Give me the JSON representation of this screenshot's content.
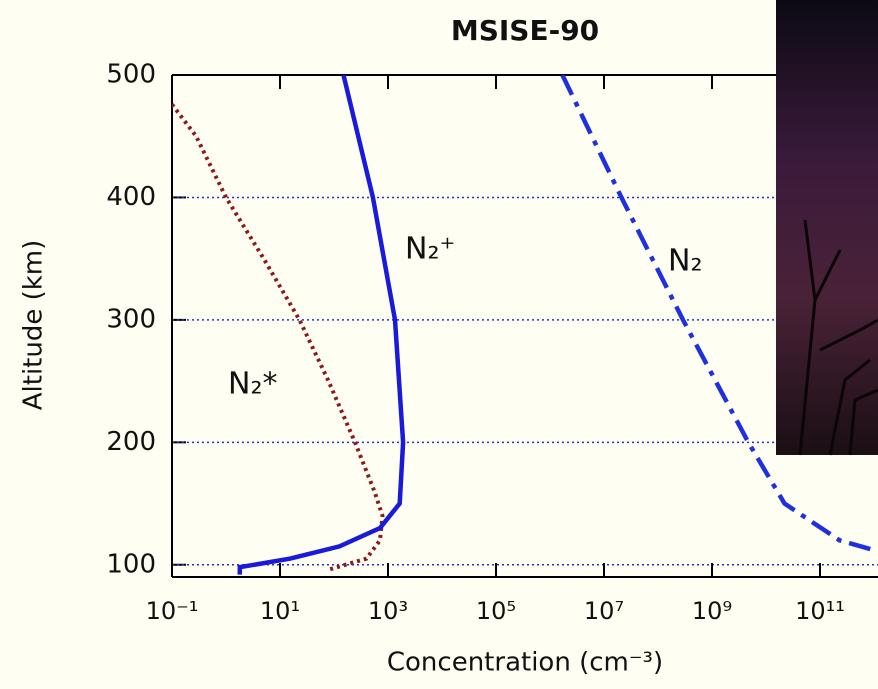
{
  "chart_data": {
    "type": "line",
    "title": "MSISE-90",
    "xlabel": "Concentration (cm⁻³)",
    "ylabel": "Altitude (km)",
    "xscale": "log",
    "grid": true,
    "xlim": [
      0.1,
      1000000000000
    ],
    "ylim": [
      90,
      500
    ],
    "xticks": [
      {
        "value": 0.1,
        "label": "10⁻¹"
      },
      {
        "value": 10,
        "label": "10¹"
      },
      {
        "value": 1000,
        "label": "10³"
      },
      {
        "value": 100000,
        "label": "10⁵"
      },
      {
        "value": 10000000,
        "label": "10⁷"
      },
      {
        "value": 1000000000,
        "label": "10⁹"
      },
      {
        "value": 100000000000,
        "label": "10¹¹"
      }
    ],
    "yticks": [
      100,
      200,
      300,
      400,
      500
    ],
    "series": [
      {
        "name": "N₂*",
        "color": "#8b1a1a",
        "linestyle": "dotted",
        "x": [
          0.1,
          0.28,
          1,
          5,
          23,
          79,
          245,
          560,
          790,
          710,
          400,
          79
        ],
        "values": [
          476,
          450,
          400,
          350,
          300,
          250,
          200,
          160,
          140,
          120,
          105,
          96
        ]
      },
      {
        "name": "N₂⁺",
        "color": "#1a1adc",
        "linestyle": "solid",
        "x": [
          150,
          525,
          1350,
          1900,
          1650,
          710,
          126,
          15.5,
          1.8,
          1.8
        ],
        "values": [
          500,
          400,
          300,
          200,
          150,
          130,
          115,
          105,
          98,
          92
        ]
      },
      {
        "name": "N₂",
        "color": "#2030e0",
        "linestyle": "dashdot",
        "x": [
          1700000,
          21000000,
          290000000,
          4700000000,
          22000000000,
          230000000000,
          1000000000000
        ],
        "values": [
          500,
          400,
          300,
          200,
          150,
          120,
          112
        ]
      }
    ]
  }
}
